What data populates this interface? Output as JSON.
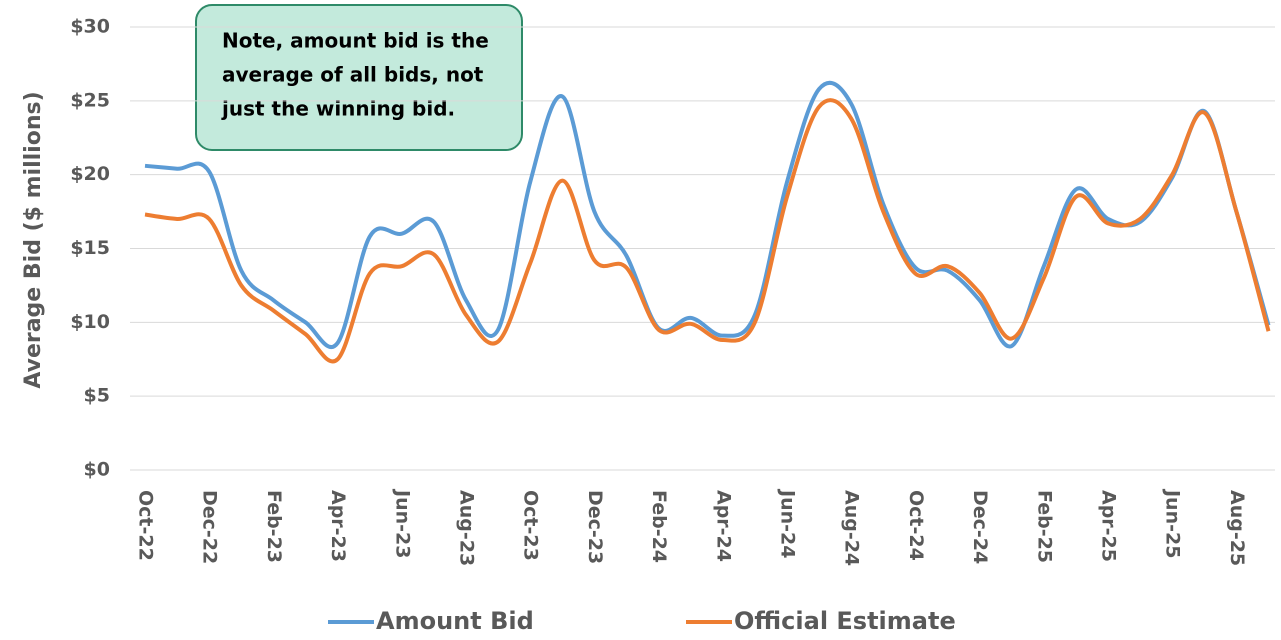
{
  "chart_data": {
    "type": "line",
    "y_label": "Average Bid ($ millions)",
    "annotation": [
      "Note, amount bid is the",
      "average of all bids, not",
      "just the winning bid."
    ],
    "categories": [
      "Oct-22",
      null,
      "Dec-22",
      null,
      "Feb-23",
      null,
      "Apr-23",
      null,
      "Jun-23",
      null,
      "Aug-23",
      null,
      "Oct-23",
      null,
      "Dec-23",
      null,
      "Feb-24",
      null,
      "Apr-24",
      null,
      "Jun-24",
      null,
      "Aug-24",
      null,
      "Oct-24",
      null,
      "Dec-24",
      null,
      "Feb-25",
      null,
      "Apr-25",
      null,
      "Jun-25",
      null,
      "Aug-25",
      null
    ],
    "series": [
      {
        "name": "Amount Bid",
        "color": "#5b9bd5",
        "values": [
          20.6,
          20.4,
          20.2,
          13.5,
          11.5,
          10.0,
          8.6,
          15.8,
          16.0,
          16.8,
          11.5,
          9.5,
          19.5,
          25.3,
          17.5,
          14.5,
          9.6,
          10.3,
          9.1,
          10.5,
          19.5,
          25.8,
          24.8,
          18.0,
          13.7,
          13.5,
          11.5,
          8.4,
          13.8,
          19.0,
          17.0,
          16.8,
          19.8,
          24.3,
          17.5,
          9.8
        ]
      },
      {
        "name": "Official Estimate",
        "color": "#ed7d31",
        "values": [
          17.3,
          17.0,
          17.0,
          12.5,
          10.8,
          9.2,
          7.5,
          13.3,
          13.8,
          14.6,
          10.5,
          8.7,
          14.0,
          19.6,
          14.2,
          13.7,
          9.5,
          9.9,
          8.8,
          10.0,
          18.5,
          24.6,
          23.8,
          17.5,
          13.3,
          13.8,
          12.0,
          8.9,
          13.0,
          18.5,
          16.7,
          17.0,
          20.0,
          24.2,
          17.5,
          9.4
        ]
      }
    ],
    "ylim": [
      0,
      30
    ],
    "yticks": [
      {
        "value": 0,
        "label": "$0"
      },
      {
        "value": 5,
        "label": "$5"
      },
      {
        "value": 10,
        "label": "$10"
      },
      {
        "value": 15,
        "label": "$15"
      },
      {
        "value": 20,
        "label": "$20"
      },
      {
        "value": 25,
        "label": "$25"
      },
      {
        "value": 30,
        "label": "$30"
      }
    ],
    "grid": true
  }
}
